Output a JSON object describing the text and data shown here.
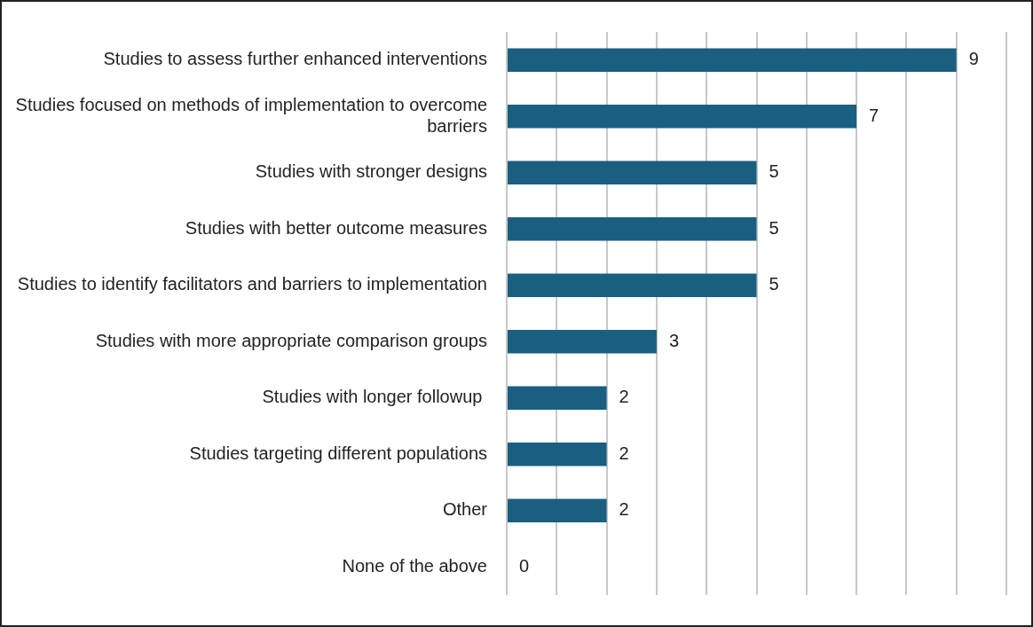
{
  "chart_data": {
    "type": "bar",
    "orientation": "horizontal",
    "categories": [
      "Studies to assess further enhanced interventions",
      "Studies focused on methods of implementation to overcome barriers",
      "Studies with stronger designs",
      "Studies with better outcome measures",
      "Studies to identify facilitators and barriers to implementation",
      "Studies with more appropriate comparison groups",
      "Studies with longer followup ",
      "Studies targeting different populations",
      "Other",
      "None of the above"
    ],
    "values": [
      9,
      7,
      5,
      5,
      5,
      3,
      2,
      2,
      2,
      0
    ],
    "color": "#1a5f80",
    "xlim": [
      0,
      10
    ],
    "xticks": [
      {
        "value": 0,
        "label": null
      },
      {
        "value": 1,
        "label": null
      },
      {
        "value": 2,
        "label": null
      },
      {
        "value": 3,
        "label": null
      },
      {
        "value": 4,
        "label": null
      },
      {
        "value": 5,
        "label": null
      },
      {
        "value": 6,
        "label": null
      },
      {
        "value": 7,
        "label": null
      },
      {
        "value": 8,
        "label": null
      },
      {
        "value": 9,
        "label": null
      },
      {
        "value": 10,
        "label": null
      }
    ],
    "grid": "x",
    "tick_labels": "y",
    "data_labels": true,
    "legend": false
  }
}
